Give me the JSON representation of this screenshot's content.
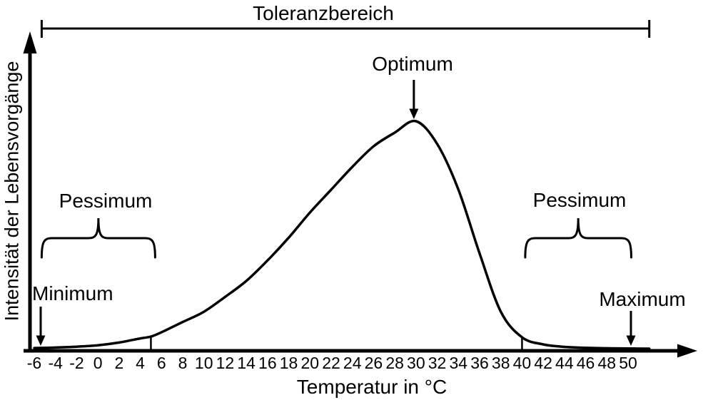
{
  "chart_data": {
    "type": "line",
    "title": "Toleranzbereich",
    "xlabel": "Temperatur in °C",
    "ylabel": "Intensität der Lebensvorgänge",
    "xlim": [
      -6,
      50
    ],
    "ylim": [
      0,
      1
    ],
    "grid": false,
    "legend": "none",
    "background_color": "#ffffff",
    "line_color": "#000000",
    "x_ticks": [
      -6,
      -4,
      -2,
      0,
      2,
      4,
      6,
      8,
      10,
      12,
      14,
      16,
      18,
      20,
      22,
      24,
      26,
      28,
      30,
      32,
      34,
      36,
      38,
      40,
      42,
      44,
      46,
      48,
      50
    ],
    "series": [
      {
        "name": "Intensität der Lebensvorgänge",
        "points": [
          [
            -6,
            0.006
          ],
          [
            -4,
            0.008
          ],
          [
            -2,
            0.012
          ],
          [
            0,
            0.018
          ],
          [
            2,
            0.03
          ],
          [
            4,
            0.048
          ],
          [
            5,
            0.056
          ],
          [
            6,
            0.075
          ],
          [
            8,
            0.12
          ],
          [
            10,
            0.165
          ],
          [
            12,
            0.23
          ],
          [
            14,
            0.3
          ],
          [
            16,
            0.39
          ],
          [
            18,
            0.49
          ],
          [
            20,
            0.6
          ],
          [
            22,
            0.7
          ],
          [
            24,
            0.8
          ],
          [
            26,
            0.89
          ],
          [
            28,
            0.95
          ],
          [
            30,
            1.0
          ],
          [
            32,
            0.9
          ],
          [
            34,
            0.7
          ],
          [
            36,
            0.42
          ],
          [
            38,
            0.165
          ],
          [
            40,
            0.053
          ],
          [
            42,
            0.022
          ],
          [
            44,
            0.011
          ],
          [
            46,
            0.007
          ],
          [
            48,
            0.005
          ],
          [
            50,
            0.004
          ],
          [
            52,
            0.003
          ]
        ]
      }
    ],
    "curve_markers": [
      {
        "temp": 5,
        "intensity": 0.055
      },
      {
        "temp": 40,
        "intensity": 0.053
      }
    ],
    "tolerance_bar": {
      "label": "Toleranzbereich",
      "from_temp": -5.3,
      "to_temp": 52
    },
    "annotations": [
      {
        "label": "Optimum",
        "type": "arrow",
        "target_temp": 30
      },
      {
        "label": "Minimum",
        "type": "arrow",
        "target_temp": -6
      },
      {
        "label": "Maximum",
        "type": "arrow",
        "target_temp": 50
      },
      {
        "label": "Pessimum",
        "type": "brace",
        "from_temp": -5.3,
        "to_temp": 5.4
      },
      {
        "label": "Pessimum",
        "type": "brace",
        "from_temp": 40.3,
        "to_temp": 50.3
      }
    ]
  }
}
